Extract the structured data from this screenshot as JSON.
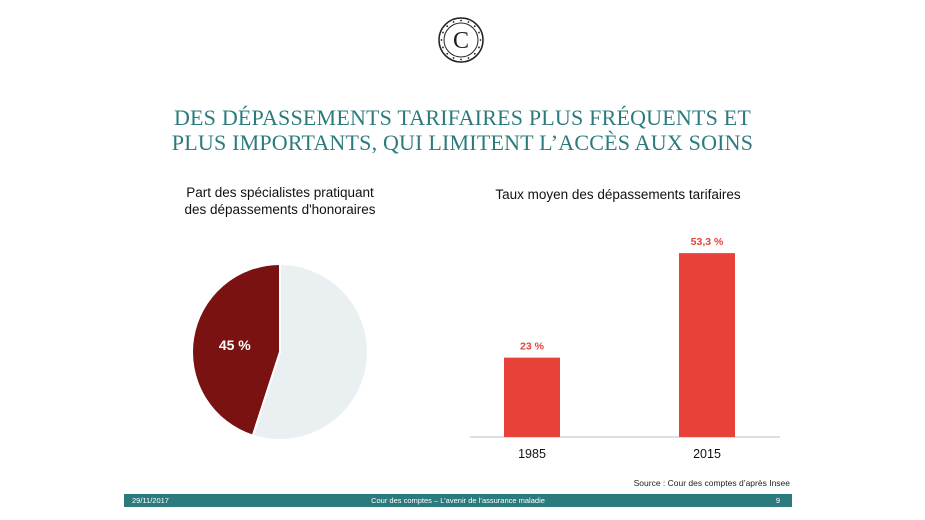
{
  "slide": {
    "title_line1": "DES DÉPASSEMENTS TARIFAIRES PLUS FRÉQUENTS ET",
    "title_line2": "PLUS IMPORTANTS, QUI LIMITENT L’ACCÈS AUX SOINS",
    "logo_letter": "C",
    "source": "Source : Cour des comptes d’après Insee",
    "footer_date": "29/11/2017",
    "footer_center": "Cour des comptes – L’avenir de l’assurance maladie",
    "footer_page": "9"
  },
  "chart_data": [
    {
      "type": "pie",
      "title_line1": "Part des spécialistes pratiquant",
      "title_line2": "des dépassements d'honoraires",
      "slices": [
        {
          "value": 45,
          "label": "45 %",
          "color": "#7a1212"
        },
        {
          "value": 55,
          "label": "",
          "color": "#eaf0f2"
        }
      ]
    },
    {
      "type": "bar",
      "title": "Taux moyen des dépassements tarifaires",
      "categories": [
        "1985",
        "2015"
      ],
      "values": [
        23,
        53.3
      ],
      "value_labels": [
        "23 %",
        "53,3 %"
      ],
      "ylim": [
        0,
        60
      ],
      "color": "#e8413a",
      "label_color": "#e8413a"
    }
  ]
}
